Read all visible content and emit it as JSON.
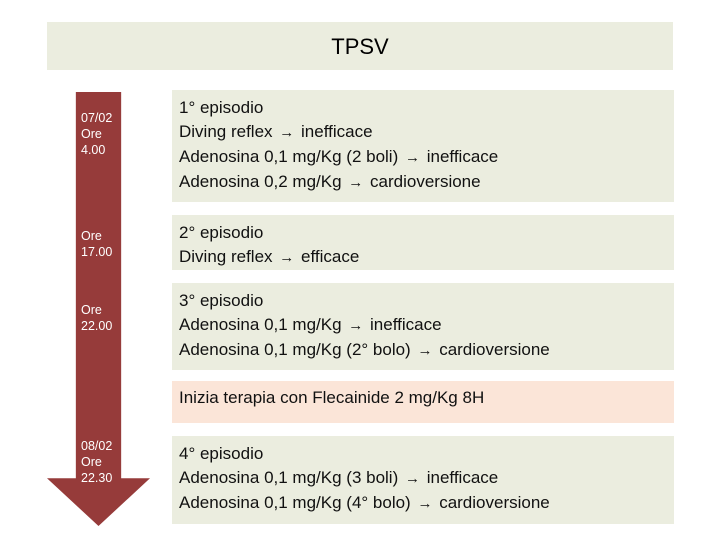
{
  "title": "TPSV",
  "colors": {
    "title_bg": "#ebeddf",
    "box_bg": "#ebeddf",
    "highlight_bg": "#fbe5d8",
    "arrow": "#963b3a"
  },
  "times": [
    [
      "07/02",
      "Ore",
      "4.00"
    ],
    [
      "Ore",
      "17.00"
    ],
    [
      "Ore",
      "22.00"
    ],
    [
      "08/02",
      "Ore",
      "22.30"
    ]
  ],
  "boxes": [
    {
      "lines": [
        {
          "text": "1° episodio"
        },
        {
          "pre": "Diving reflex",
          "post": "inefficace"
        },
        {
          "pre": "Adenosina 0,1 mg/Kg (2 boli)",
          "post": "inefficace"
        },
        {
          "pre": "Adenosina 0,2 mg/Kg",
          "post": "cardioversione"
        }
      ]
    },
    {
      "lines": [
        {
          "text": "2° episodio"
        },
        {
          "pre": "Diving reflex",
          "post": "efficace"
        }
      ]
    },
    {
      "lines": [
        {
          "text": "3° episodio"
        },
        {
          "pre": "Adenosina 0,1 mg/Kg",
          "post": "inefficace"
        },
        {
          "pre": "Adenosina 0,1 mg/Kg (2° bolo)",
          "post": "cardioversione"
        }
      ]
    },
    {
      "lines": [
        {
          "text": "Inizia terapia con Flecainide 2 mg/Kg 8H"
        }
      ]
    },
    {
      "lines": [
        {
          "text": "4° episodio"
        },
        {
          "pre": "Adenosina 0,1 mg/Kg (3 boli)",
          "post": "inefficace"
        },
        {
          "pre": "Adenosina 0,1 mg/Kg (4° bolo)",
          "post": "cardioversione"
        }
      ]
    }
  ],
  "arrow_glyph": "→"
}
